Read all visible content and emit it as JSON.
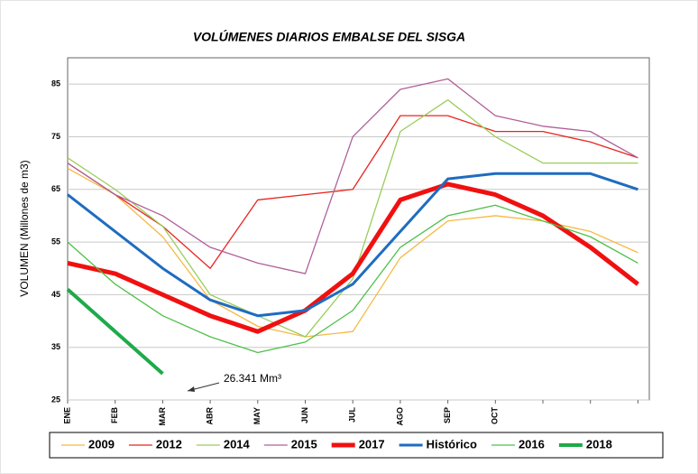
{
  "chart_data": {
    "type": "line",
    "title": "VOLÚMENES DIARIOS EMBALSE DEL SISGA",
    "y_label": "VOLUMEN (Millones de m3)",
    "categories": [
      "ENE",
      "FEB",
      "MAR",
      "ABR",
      "MAY",
      "JUN",
      "JUL",
      "AGO",
      "SEP",
      "OCT",
      null,
      null,
      null
    ],
    "ylim": [
      25,
      90
    ],
    "yticks": [
      25,
      35,
      45,
      55,
      65,
      75,
      85
    ],
    "grid": true,
    "legend": "bottom",
    "annotation": "26.341 Mm³",
    "series": [
      {
        "name": "2009",
        "color": "#f5b942",
        "line_width": 1.3,
        "values": [
          69,
          64,
          56,
          44,
          39,
          37,
          38,
          52,
          59,
          60,
          59,
          57,
          53
        ]
      },
      {
        "name": "2012",
        "color": "#e8251f",
        "line_width": 1.3,
        "values": [
          70,
          64,
          58,
          50,
          63,
          64,
          65,
          79,
          79,
          76,
          76,
          74,
          71
        ]
      },
      {
        "name": "2014",
        "color": "#9acd5a",
        "line_width": 1.3,
        "values": [
          71,
          65,
          58,
          45,
          41,
          37,
          48,
          76,
          82,
          75,
          70,
          70,
          70
        ]
      },
      {
        "name": "2015",
        "color": "#b0609a",
        "line_width": 1.3,
        "values": [
          70,
          64,
          60,
          54,
          51,
          49,
          75,
          84,
          86,
          79,
          77,
          76,
          71
        ]
      },
      {
        "name": "2017",
        "color": "#f01010",
        "line_width": 5,
        "values": [
          51,
          49,
          45,
          41,
          38,
          42,
          49,
          63,
          66,
          64,
          60,
          54,
          47
        ]
      },
      {
        "name": "Histórico",
        "color": "#1f6cc0",
        "line_width": 3,
        "values": [
          64,
          57,
          50,
          44,
          41,
          42,
          47,
          57,
          67,
          68,
          68,
          68,
          65
        ]
      },
      {
        "name": "2016",
        "color": "#4fc04a",
        "line_width": 1.3,
        "values": [
          55,
          47,
          41,
          37,
          34,
          36,
          42,
          54,
          60,
          62,
          59,
          56,
          51
        ]
      },
      {
        "name": "2018",
        "color": "#1faa4a",
        "line_width": 4,
        "values": [
          46,
          38,
          30,
          null,
          null,
          null,
          null,
          null,
          null,
          null,
          null,
          null,
          null
        ]
      }
    ]
  }
}
